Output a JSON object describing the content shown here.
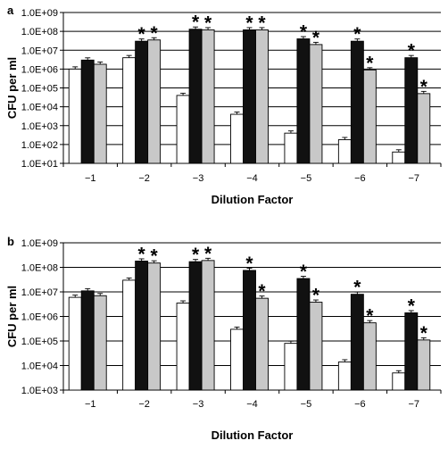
{
  "chart_data": [
    {
      "panel": "a",
      "type": "bar",
      "scale": "log",
      "ylabel": "CFU per ml",
      "xlabel": "Dilution Factor",
      "ylim": [
        10,
        1000000000
      ],
      "yticks": [
        "1.0E+01",
        "1.0E+02",
        "1.0E+03",
        "1.0E+04",
        "1.0E+05",
        "1.0E+06",
        "1.0E+07",
        "1.0E+08",
        "1.0E+09"
      ],
      "categories": [
        "−1",
        "−2",
        "−3",
        "−4",
        "−5",
        "−6",
        "−7"
      ],
      "grid": true,
      "series_colors": [
        "#ffffff",
        "#111111",
        "#c8c8c8"
      ],
      "series": [
        {
          "values": [
            1000000,
            4000000,
            40000,
            4000,
            400,
            180,
            40
          ],
          "stars": [
            false,
            false,
            false,
            false,
            false,
            false,
            false
          ]
        },
        {
          "values": [
            3000000,
            30000000,
            130000000,
            120000000,
            40000000,
            30000000,
            4000000
          ],
          "stars": [
            false,
            true,
            true,
            true,
            true,
            true,
            true
          ]
        },
        {
          "values": [
            1800000,
            35000000,
            120000000,
            120000000,
            20000000,
            900000,
            50000
          ],
          "stars": [
            false,
            true,
            true,
            true,
            true,
            true,
            true
          ]
        }
      ]
    },
    {
      "panel": "b",
      "type": "bar",
      "scale": "log",
      "ylabel": "CFU per ml",
      "xlabel": "Dilution Factor",
      "ylim": [
        1000,
        1000000000
      ],
      "yticks": [
        "1.0E+03",
        "1.0E+04",
        "1.0E+05",
        "1.0E+06",
        "1.0E+07",
        "1.0E+08",
        "1.0E+09"
      ],
      "categories": [
        "−1",
        "−2",
        "−3",
        "−4",
        "−5",
        "−6",
        "−7"
      ],
      "grid": true,
      "series_colors": [
        "#ffffff",
        "#111111",
        "#c8c8c8"
      ],
      "series": [
        {
          "values": [
            6000000,
            30000000,
            3500000,
            300000,
            80000,
            14000,
            5000
          ],
          "stars": [
            false,
            false,
            false,
            false,
            false,
            false,
            false
          ]
        },
        {
          "values": [
            11000000,
            180000000,
            170000000,
            75000000,
            35000000,
            8000000,
            1400000
          ],
          "stars": [
            false,
            true,
            true,
            true,
            true,
            true,
            true
          ]
        },
        {
          "values": [
            7000000,
            150000000,
            190000000,
            5500000,
            3800000,
            550000,
            110000
          ],
          "stars": [
            false,
            true,
            true,
            true,
            true,
            true,
            true
          ]
        }
      ]
    }
  ]
}
